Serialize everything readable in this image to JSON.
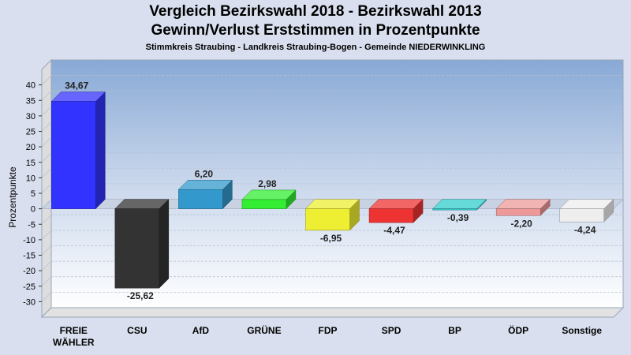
{
  "chart_data": {
    "type": "bar",
    "title": "Vergleich Bezirkswahl 2018 - Bezirkswahl 2013",
    "subtitle": "Gewinn/Verlust Erststimmen in Prozentpunkte",
    "caption": "Stimmkreis Straubing - Landkreis Straubing-Bogen - Gemeinde NIEDERWINKLING",
    "ylabel": "Prozentpunkte",
    "xlabel": "",
    "ylim": [
      -35,
      45
    ],
    "yticks": [
      40,
      35,
      30,
      25,
      20,
      15,
      10,
      5,
      0,
      -5,
      -10,
      -15,
      -20,
      -25,
      -30
    ],
    "grid": true,
    "categories": [
      "FREIE WÄHLER",
      "CSU",
      "AfD",
      "GRÜNE",
      "FDP",
      "SPD",
      "BP",
      "ÖDP",
      "Sonstige"
    ],
    "category_lines": [
      [
        "FREIE",
        "WÄHLER"
      ],
      [
        "CSU"
      ],
      [
        "AfD"
      ],
      [
        "GRÜNE"
      ],
      [
        "FDP"
      ],
      [
        "SPD"
      ],
      [
        "BP"
      ],
      [
        "ÖDP"
      ],
      [
        "Sonstige"
      ]
    ],
    "values": [
      34.67,
      -25.62,
      6.2,
      2.98,
      -6.95,
      -4.47,
      -0.39,
      -2.2,
      -4.24
    ],
    "value_labels": [
      "34,67",
      "-25,62",
      "6,20",
      "2,98",
      "-6,95",
      "-4,47",
      "-0,39",
      "-2,20",
      "-4,24"
    ],
    "colors": [
      "#3333ff",
      "#333333",
      "#3399cc",
      "#33ee33",
      "#eeee33",
      "#ee3333",
      "#33cccc",
      "#ee9999",
      "#eeeeee"
    ]
  }
}
